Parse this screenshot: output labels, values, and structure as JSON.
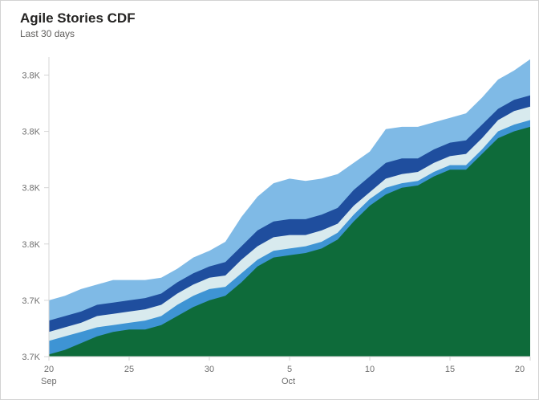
{
  "card": {
    "title": "Agile Stories CDF",
    "subtitle": "Last 30 days"
  },
  "colors": {
    "title_text": "#252423",
    "subtitle_text": "#605e5c",
    "axis_line": "#d6d6d6",
    "tick_text": "#6e6e6e",
    "card_border": "#d2d2d2",
    "background": "#ffffff"
  },
  "chart_data": {
    "type": "area",
    "stacked": true,
    "title": "Agile Stories CDF",
    "subtitle": "Last 30 days",
    "grid": false,
    "legend": "none",
    "x": [
      "Sep 20",
      "Sep 21",
      "Sep 22",
      "Sep 23",
      "Sep 24",
      "Sep 25",
      "Sep 26",
      "Sep 27",
      "Sep 28",
      "Sep 29",
      "Sep 30",
      "Oct 1",
      "Oct 2",
      "Oct 3",
      "Oct 4",
      "Oct 5",
      "Oct 6",
      "Oct 7",
      "Oct 8",
      "Oct 9",
      "Oct 10",
      "Oct 11",
      "Oct 12",
      "Oct 13",
      "Oct 14",
      "Oct 15",
      "Oct 16",
      "Oct 17",
      "Oct 18",
      "Oct 19",
      "Oct 20"
    ],
    "ylim": [
      3700,
      3833
    ],
    "y_ticks": [
      {
        "value": 3700,
        "label": "3.7K"
      },
      {
        "value": 3725,
        "label": "3.7K"
      },
      {
        "value": 3750,
        "label": "3.8K"
      },
      {
        "value": 3775,
        "label": "3.8K"
      },
      {
        "value": 3800,
        "label": "3.8K"
      },
      {
        "value": 3825,
        "label": "3.8K"
      }
    ],
    "x_ticks": [
      {
        "day": 0,
        "label": "20",
        "month": "Sep"
      },
      {
        "day": 5,
        "label": "25"
      },
      {
        "day": 10,
        "label": "30"
      },
      {
        "day": 15,
        "label": "5",
        "month": "Oct"
      },
      {
        "day": 20,
        "label": "10"
      },
      {
        "day": 25,
        "label": "15"
      },
      {
        "day": 30,
        "label": "20"
      }
    ],
    "series_note": "bottom-to-top stacking order; cumulative = running stacked top value per day",
    "series": [
      {
        "name": "series-green",
        "color": "#0E6B3A",
        "cumulative": [
          3701,
          3703,
          3706,
          3709,
          3711,
          3712,
          3712,
          3714,
          3718,
          3722,
          3725,
          3727,
          3733,
          3740,
          3744,
          3745,
          3746,
          3748,
          3752,
          3760,
          3767,
          3772,
          3775,
          3776,
          3780,
          3783,
          3783,
          3790,
          3797,
          3800,
          3802
        ]
      },
      {
        "name": "series-medium-blue",
        "color": "#3E94D4",
        "cumulative": [
          3707,
          3709,
          3711,
          3713,
          3714,
          3715,
          3716,
          3718,
          3723,
          3727,
          3730,
          3731,
          3737,
          3743,
          3747,
          3748,
          3749,
          3751,
          3755,
          3763,
          3770,
          3775,
          3777,
          3778,
          3782,
          3785,
          3785,
          3792,
          3800,
          3803,
          3805
        ]
      },
      {
        "name": "series-pale-cyan",
        "color": "#D8EAEE",
        "cumulative": [
          3711,
          3713,
          3715,
          3718,
          3719,
          3720,
          3721,
          3723,
          3728,
          3732,
          3735,
          3736,
          3743,
          3749,
          3753,
          3754,
          3754,
          3756,
          3759,
          3767,
          3773,
          3779,
          3781,
          3782,
          3786,
          3789,
          3790,
          3797,
          3805,
          3809,
          3811
        ]
      },
      {
        "name": "series-navy",
        "color": "#1F4E9E",
        "cumulative": [
          3716,
          3718,
          3720,
          3723,
          3724,
          3725,
          3726,
          3728,
          3733,
          3737,
          3740,
          3742,
          3749,
          3756,
          3760,
          3761,
          3761,
          3763,
          3766,
          3774,
          3780,
          3786,
          3788,
          3788,
          3792,
          3795,
          3796,
          3803,
          3810,
          3814,
          3816
        ]
      },
      {
        "name": "series-light-blue",
        "color": "#7FBAE6",
        "cumulative": [
          3725,
          3727,
          3730,
          3732,
          3734,
          3734,
          3734,
          3735,
          3739,
          3744,
          3747,
          3751,
          3762,
          3771,
          3777,
          3779,
          3778,
          3779,
          3781,
          3786,
          3791,
          3801,
          3802,
          3802,
          3804,
          3806,
          3808,
          3815,
          3823,
          3827,
          3832
        ]
      }
    ]
  }
}
